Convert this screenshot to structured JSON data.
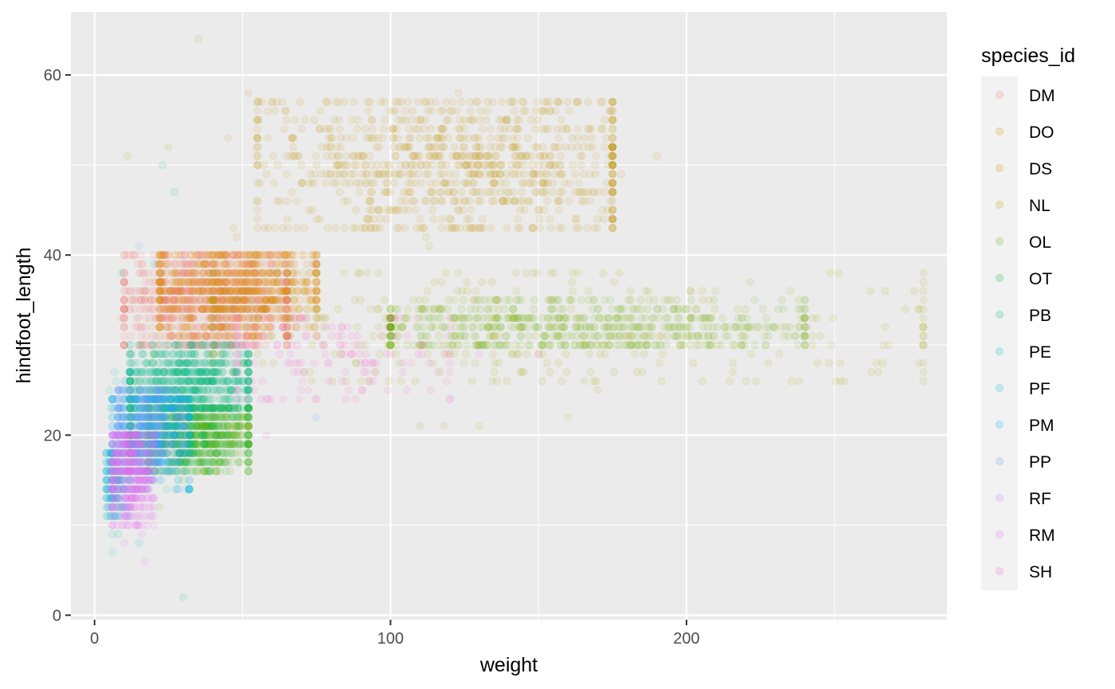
{
  "chart_data": {
    "type": "scatter",
    "xlabel": "weight",
    "ylabel": "hindfoot_length",
    "xlim": [
      -8,
      288
    ],
    "ylim": [
      -0.5,
      67
    ],
    "x_ticks": [
      0,
      100,
      200
    ],
    "y_ticks": [
      0,
      20,
      40,
      60
    ],
    "grid": true,
    "point_alpha": 0.1,
    "legend": {
      "title": "species_id",
      "position": "right"
    },
    "series": [
      {
        "name": "DM",
        "color": "#F8766D",
        "clusters": [
          {
            "x": [
              10,
              65
            ],
            "y": [
              30,
              40
            ],
            "cx": 38,
            "cy": 35,
            "n": 900
          }
        ],
        "points": [
          [
            12,
            36
          ],
          [
            20,
            38
          ],
          [
            55,
            40
          ],
          [
            60,
            39
          ],
          [
            65,
            37
          ],
          [
            9,
            33
          ]
        ]
      },
      {
        "name": "DO",
        "color": "#E58700",
        "clusters": [
          {
            "x": [
              22,
              75
            ],
            "y": [
              31,
              40
            ],
            "cx": 48,
            "cy": 36,
            "n": 800
          }
        ],
        "points": [
          [
            70,
            37
          ],
          [
            75,
            37
          ],
          [
            25,
            31
          ]
        ]
      },
      {
        "name": "DS",
        "color": "#C99800",
        "clusters": [
          {
            "x": [
              55,
              175
            ],
            "y": [
              43,
              57
            ],
            "cx": 125,
            "cy": 50,
            "n": 900
          }
        ],
        "points": [
          [
            35,
            64
          ],
          [
            52,
            58
          ],
          [
            123,
            58
          ],
          [
            178,
            49
          ],
          [
            190,
            51
          ],
          [
            45,
            53
          ],
          [
            47,
            43
          ],
          [
            48,
            42
          ]
        ]
      },
      {
        "name": "NL",
        "color": "#A3A500",
        "clusters": [
          {
            "x": [
              40,
              280
            ],
            "y": [
              26,
              38
            ],
            "cx": 150,
            "cy": 32,
            "n": 380
          }
        ],
        "points": [
          [
            11,
            51
          ],
          [
            25,
            52
          ],
          [
            112,
            42
          ],
          [
            113,
            41
          ],
          [
            110,
            21
          ],
          [
            118,
            21
          ],
          [
            130,
            21
          ],
          [
            160,
            22
          ],
          [
            170,
            25
          ],
          [
            145,
            27
          ],
          [
            135,
            27
          ]
        ]
      },
      {
        "name": "OL",
        "color": "#6BB100",
        "clusters": [
          {
            "x": [
              18,
              52
            ],
            "y": [
              16,
              23
            ],
            "cx": 36,
            "cy": 20,
            "n": 500
          },
          {
            "x": [
              100,
              240
            ],
            "y": [
              30,
              35
            ],
            "cx": 160,
            "cy": 32,
            "n": 550
          }
        ],
        "points": [
          [
            20,
            29
          ],
          [
            22,
            12
          ],
          [
            30,
            15
          ],
          [
            35,
            21
          ],
          [
            45,
            22
          ],
          [
            50,
            20
          ]
        ]
      },
      {
        "name": "OT",
        "color": "#00BA38",
        "clusters": [
          {
            "x": [
              12,
              52
            ],
            "y": [
              16,
              23
            ],
            "cx": 30,
            "cy": 20,
            "n": 450
          }
        ],
        "points": [
          [
            14,
            20
          ],
          [
            20,
            18
          ],
          [
            28,
            17
          ]
        ]
      },
      {
        "name": "PB",
        "color": "#00BF7D",
        "clusters": [
          {
            "x": [
              12,
              52
            ],
            "y": [
              23,
              30
            ],
            "cx": 32,
            "cy": 26,
            "n": 750
          }
        ],
        "points": [
          [
            23,
            50
          ],
          [
            27,
            47
          ],
          [
            30,
            2
          ],
          [
            20,
            39
          ],
          [
            15,
            27
          ]
        ]
      },
      {
        "name": "PE",
        "color": "#00C0AF",
        "clusters": [
          {
            "x": [
              5,
              32
            ],
            "y": [
              14,
              27
            ],
            "cx": 20,
            "cy": 21,
            "n": 120
          }
        ],
        "points": [
          [
            6,
            9
          ],
          [
            8,
            9
          ],
          [
            6,
            7
          ],
          [
            15,
            8
          ],
          [
            9,
            38
          ]
        ]
      },
      {
        "name": "PF",
        "color": "#00BCD8",
        "clusters": [
          {
            "x": [
              4,
              12
            ],
            "y": [
              11,
              18
            ],
            "cx": 7,
            "cy": 15,
            "n": 140
          }
        ],
        "points": [
          [
            5,
            13
          ],
          [
            6,
            12
          ]
        ]
      },
      {
        "name": "PM",
        "color": "#00B0F6",
        "clusters": [
          {
            "x": [
              6,
              32
            ],
            "y": [
              14,
              24
            ],
            "cx": 20,
            "cy": 20,
            "n": 350
          }
        ],
        "points": [
          [
            8,
            13
          ],
          [
            10,
            14
          ]
        ]
      },
      {
        "name": "PP",
        "color": "#619CFF",
        "clusters": [
          {
            "x": [
              8,
              30
            ],
            "y": [
              16,
              25
            ],
            "cx": 18,
            "cy": 21,
            "n": 380
          }
        ],
        "points": [
          [
            10,
            26
          ],
          [
            12,
            27
          ],
          [
            15,
            41
          ],
          [
            75,
            22
          ]
        ]
      },
      {
        "name": "RF",
        "color": "#B983FF",
        "clusters": [
          {
            "x": [
              7,
              18
            ],
            "y": [
              11,
              20
            ],
            "cx": 12,
            "cy": 16,
            "n": 70
          }
        ],
        "points": [
          [
            9,
            11
          ],
          [
            11,
            12
          ]
        ]
      },
      {
        "name": "RM",
        "color": "#E76BF3",
        "clusters": [
          {
            "x": [
              6,
              20
            ],
            "y": [
              10,
              20
            ],
            "cx": 12,
            "cy": 16,
            "n": 420
          }
        ],
        "points": [
          [
            16,
            9
          ],
          [
            17,
            6
          ],
          [
            10,
            8
          ],
          [
            13,
            13
          ]
        ]
      },
      {
        "name": "SH",
        "color": "#FD61D1",
        "clusters": [
          {
            "x": [
              48,
              120
            ],
            "y": [
              24,
              33
            ],
            "cx": 78,
            "cy": 29,
            "n": 150
          }
        ],
        "points": [
          [
            75,
            39
          ],
          [
            58,
            20
          ],
          [
            64,
            37
          ],
          [
            80,
            31
          ],
          [
            95,
            27
          ],
          [
            120,
            29
          ],
          [
            130,
            29
          ],
          [
            150,
            29
          ]
        ]
      }
    ]
  }
}
